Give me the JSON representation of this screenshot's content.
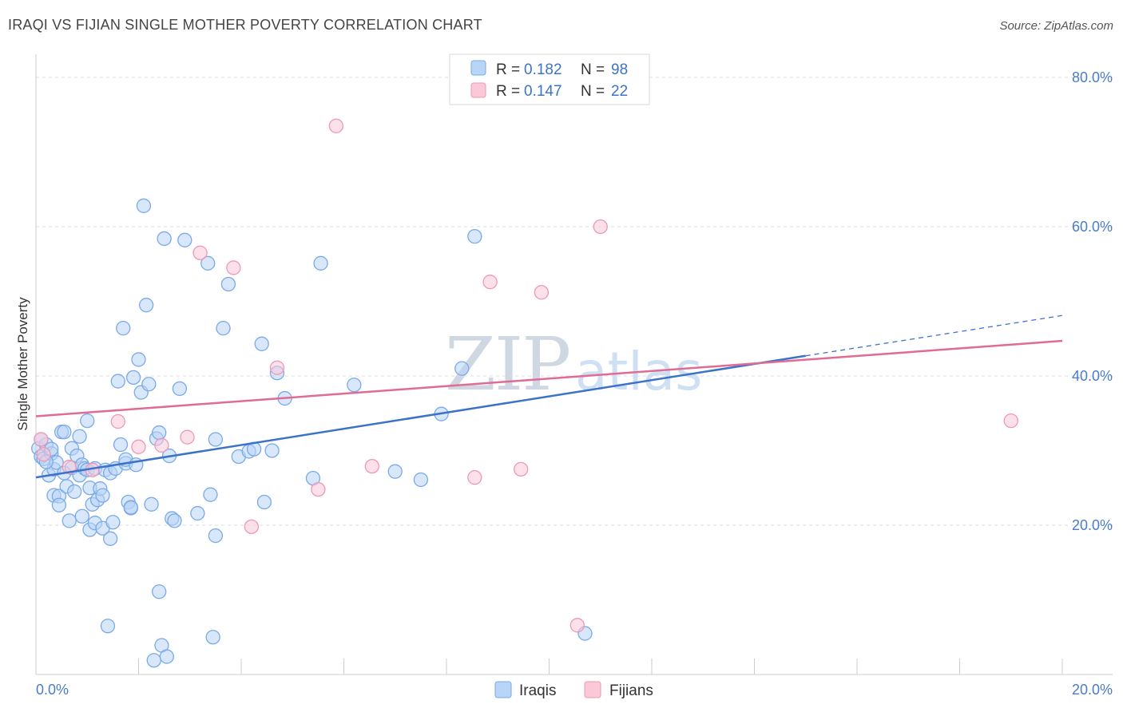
{
  "title": "IRAQI VS FIJIAN SINGLE MOTHER POVERTY CORRELATION CHART",
  "source": "Source: ZipAtlas.com",
  "watermark": {
    "zip": "ZIP",
    "atlas": "atlas"
  },
  "legend": {
    "r_label": "R =",
    "n_label": "N =",
    "series": [
      {
        "name": "Iraqis",
        "r": "0.182",
        "n": "98",
        "color": "#7aaae8",
        "fill": "#b8d4f6"
      },
      {
        "name": "Fijians",
        "r": "0.147",
        "n": "22",
        "color": "#ee98b4",
        "fill": "#f9c9d8"
      }
    ]
  },
  "chart_data": {
    "type": "scatter",
    "title": "IRAQI VS FIJIAN SINGLE MOTHER POVERTY CORRELATION CHART",
    "xlabel": "",
    "ylabel": "Single Mother Poverty",
    "xlim": [
      0,
      20
    ],
    "ylim": [
      0,
      80
    ],
    "x_tick_labels": [
      "0.0%",
      "20.0%"
    ],
    "y_ticks": [
      {
        "value": 20,
        "label": "20.0%"
      },
      {
        "value": 40,
        "label": "40.0%"
      },
      {
        "value": 60,
        "label": "60.0%"
      },
      {
        "value": 80,
        "label": "80.0%"
      }
    ],
    "series": [
      {
        "name": "Iraqis",
        "color": "#3b73c8",
        "trend": {
          "x0": 0,
          "y0": 26.4,
          "x1": 15.0,
          "y1": 42.7,
          "dash_to_x": 20.0,
          "dash_to_y": 48.1
        },
        "points": [
          [
            0.05,
            30.3
          ],
          [
            0.1,
            29.2
          ],
          [
            0.15,
            28.9
          ],
          [
            0.2,
            30.8
          ],
          [
            0.25,
            26.7
          ],
          [
            0.3,
            29.6
          ],
          [
            0.35,
            27.5
          ],
          [
            0.35,
            24.0
          ],
          [
            0.4,
            28.4
          ],
          [
            0.45,
            23.9
          ],
          [
            0.45,
            22.7
          ],
          [
            0.5,
            32.5
          ],
          [
            0.55,
            32.5
          ],
          [
            0.55,
            27.0
          ],
          [
            0.6,
            25.2
          ],
          [
            0.65,
            20.6
          ],
          [
            0.7,
            27.7
          ],
          [
            0.7,
            30.3
          ],
          [
            0.75,
            24.5
          ],
          [
            0.8,
            29.3
          ],
          [
            0.85,
            26.7
          ],
          [
            0.85,
            31.9
          ],
          [
            0.9,
            28.1
          ],
          [
            0.9,
            21.2
          ],
          [
            0.95,
            27.6
          ],
          [
            1.0,
            27.4
          ],
          [
            1.0,
            34.0
          ],
          [
            1.05,
            19.4
          ],
          [
            1.05,
            25.0
          ],
          [
            1.1,
            22.8
          ],
          [
            1.15,
            20.3
          ],
          [
            1.15,
            27.6
          ],
          [
            1.2,
            23.4
          ],
          [
            1.25,
            24.9
          ],
          [
            1.3,
            19.6
          ],
          [
            1.35,
            27.4
          ],
          [
            1.4,
            6.5
          ],
          [
            1.45,
            18.2
          ],
          [
            1.45,
            27.0
          ],
          [
            1.5,
            20.4
          ],
          [
            1.55,
            27.6
          ],
          [
            1.6,
            39.3
          ],
          [
            1.65,
            30.8
          ],
          [
            1.7,
            46.4
          ],
          [
            1.75,
            28.3
          ],
          [
            1.75,
            28.8
          ],
          [
            1.8,
            23.1
          ],
          [
            1.85,
            22.3
          ],
          [
            1.85,
            22.4
          ],
          [
            1.9,
            39.8
          ],
          [
            1.95,
            28.1
          ],
          [
            2.0,
            42.2
          ],
          [
            2.05,
            37.8
          ],
          [
            2.1,
            62.8
          ],
          [
            2.15,
            49.5
          ],
          [
            2.2,
            38.9
          ],
          [
            2.25,
            22.8
          ],
          [
            2.3,
            1.9
          ],
          [
            2.35,
            31.6
          ],
          [
            2.4,
            32.4
          ],
          [
            2.4,
            11.1
          ],
          [
            2.45,
            3.9
          ],
          [
            2.5,
            58.4
          ],
          [
            2.55,
            2.4
          ],
          [
            2.6,
            29.3
          ],
          [
            2.65,
            20.9
          ],
          [
            2.7,
            20.6
          ],
          [
            2.8,
            38.3
          ],
          [
            2.9,
            58.2
          ],
          [
            3.15,
            21.6
          ],
          [
            3.35,
            55.1
          ],
          [
            3.4,
            24.1
          ],
          [
            3.45,
            5.0
          ],
          [
            3.5,
            31.5
          ],
          [
            3.5,
            18.6
          ],
          [
            3.65,
            46.4
          ],
          [
            3.75,
            52.3
          ],
          [
            3.95,
            29.2
          ],
          [
            4.15,
            29.9
          ],
          [
            4.25,
            30.2
          ],
          [
            4.4,
            44.3
          ],
          [
            4.45,
            23.1
          ],
          [
            4.6,
            30.0
          ],
          [
            4.7,
            40.4
          ],
          [
            4.85,
            37.0
          ],
          [
            5.4,
            26.3
          ],
          [
            5.55,
            55.1
          ],
          [
            6.2,
            38.8
          ],
          [
            7.0,
            27.2
          ],
          [
            7.5,
            26.1
          ],
          [
            7.9,
            34.9
          ],
          [
            8.3,
            41.0
          ],
          [
            8.55,
            58.7
          ],
          [
            10.7,
            5.5
          ],
          [
            0.1,
            31.5
          ],
          [
            0.2,
            28.5
          ],
          [
            0.3,
            30.2
          ],
          [
            1.3,
            24.0
          ]
        ]
      },
      {
        "name": "Fijians",
        "color": "#e06b93",
        "trend": {
          "x0": 0,
          "y0": 34.6,
          "x1": 20.0,
          "y1": 44.7
        },
        "points": [
          [
            0.1,
            31.5
          ],
          [
            0.15,
            29.5
          ],
          [
            0.65,
            27.8
          ],
          [
            1.1,
            27.4
          ],
          [
            1.6,
            33.9
          ],
          [
            2.0,
            30.5
          ],
          [
            2.45,
            30.7
          ],
          [
            2.95,
            31.8
          ],
          [
            3.2,
            56.5
          ],
          [
            3.85,
            54.5
          ],
          [
            4.2,
            19.8
          ],
          [
            4.7,
            41.1
          ],
          [
            5.5,
            24.8
          ],
          [
            5.85,
            73.5
          ],
          [
            6.55,
            27.9
          ],
          [
            8.55,
            26.4
          ],
          [
            8.85,
            52.6
          ],
          [
            9.45,
            27.5
          ],
          [
            9.85,
            51.2
          ],
          [
            10.55,
            6.6
          ],
          [
            11.0,
            60.0
          ],
          [
            19.0,
            34.0
          ]
        ]
      }
    ]
  }
}
